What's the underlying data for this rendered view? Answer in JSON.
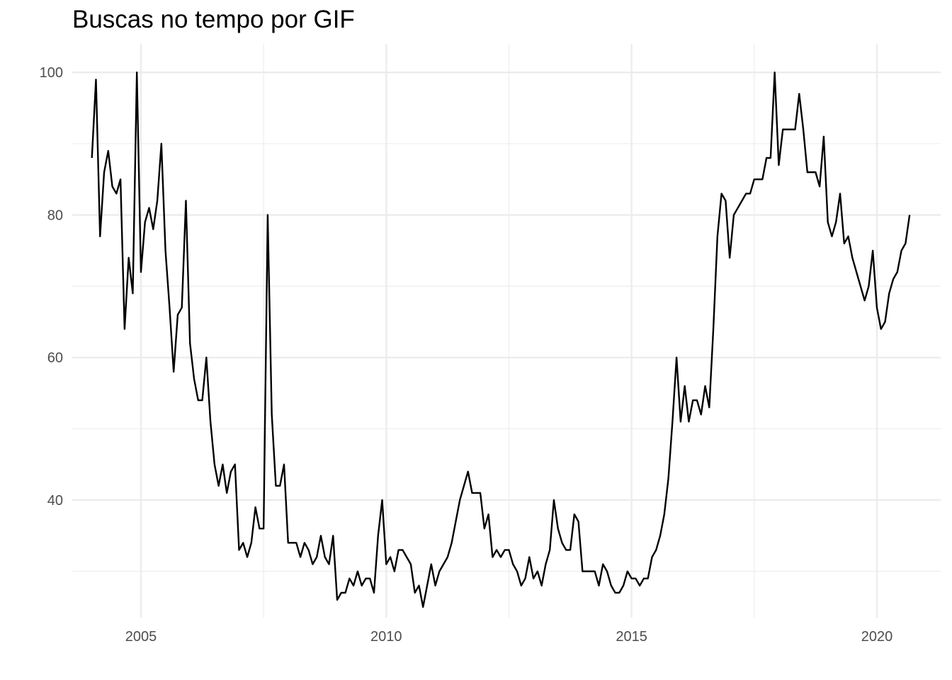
{
  "chart_data": {
    "type": "line",
    "title": "Buscas no tempo por GIF",
    "xlabel": "",
    "ylabel": "",
    "xlim": [
      2003.6,
      2021.3
    ],
    "ylim": [
      23.5,
      104
    ],
    "x_ticks": [
      2005,
      2010,
      2015,
      2020
    ],
    "x_tick_labels": [
      "2005",
      "2010",
      "2015",
      "2020"
    ],
    "y_ticks": [
      40,
      60,
      80,
      100
    ],
    "y_tick_labels": [
      "40",
      "60",
      "80",
      "100"
    ],
    "grid": true,
    "legend": "none",
    "line_color": "#000000",
    "series": [
      {
        "x_start": "2004-01",
        "frequency": "monthly",
        "values": [
          88,
          99,
          77,
          86,
          89,
          84,
          83,
          85,
          64,
          74,
          69,
          100,
          72,
          79,
          81,
          78,
          82,
          90,
          75,
          67,
          58,
          66,
          67,
          82,
          62,
          57,
          54,
          54,
          60,
          51,
          45,
          42,
          45,
          41,
          44,
          45,
          33,
          34,
          32,
          34,
          39,
          36,
          36,
          80,
          52,
          42,
          42,
          45,
          34,
          34,
          34,
          32,
          34,
          33,
          31,
          32,
          35,
          32,
          31,
          35,
          26,
          27,
          27,
          29,
          28,
          30,
          28,
          29,
          29,
          27,
          35,
          40,
          31,
          32,
          30,
          33,
          33,
          32,
          31,
          27,
          28,
          25,
          28,
          31,
          28,
          30,
          31,
          32,
          34,
          37,
          40,
          42,
          44,
          41,
          41,
          41,
          36,
          38,
          32,
          33,
          32,
          33,
          33,
          31,
          30,
          28,
          29,
          32,
          29,
          30,
          28,
          31,
          33,
          40,
          36,
          34,
          33,
          33,
          38,
          37,
          30,
          30,
          30,
          30,
          28,
          31,
          30,
          28,
          27,
          27,
          28,
          30,
          29,
          29,
          28,
          29,
          29,
          32,
          33,
          35,
          38,
          43,
          51,
          60,
          51,
          56,
          51,
          54,
          54,
          52,
          56,
          53,
          64,
          77,
          83,
          82,
          74,
          80,
          81,
          82,
          83,
          83,
          85,
          85,
          85,
          88,
          88,
          100,
          87,
          92,
          92,
          92,
          92,
          97,
          92,
          86,
          86,
          86,
          84,
          91,
          79,
          77,
          79,
          83,
          76,
          77,
          74,
          72,
          70,
          68,
          70,
          75,
          67,
          64,
          65,
          69,
          71,
          72,
          75,
          76,
          80
        ]
      }
    ]
  }
}
